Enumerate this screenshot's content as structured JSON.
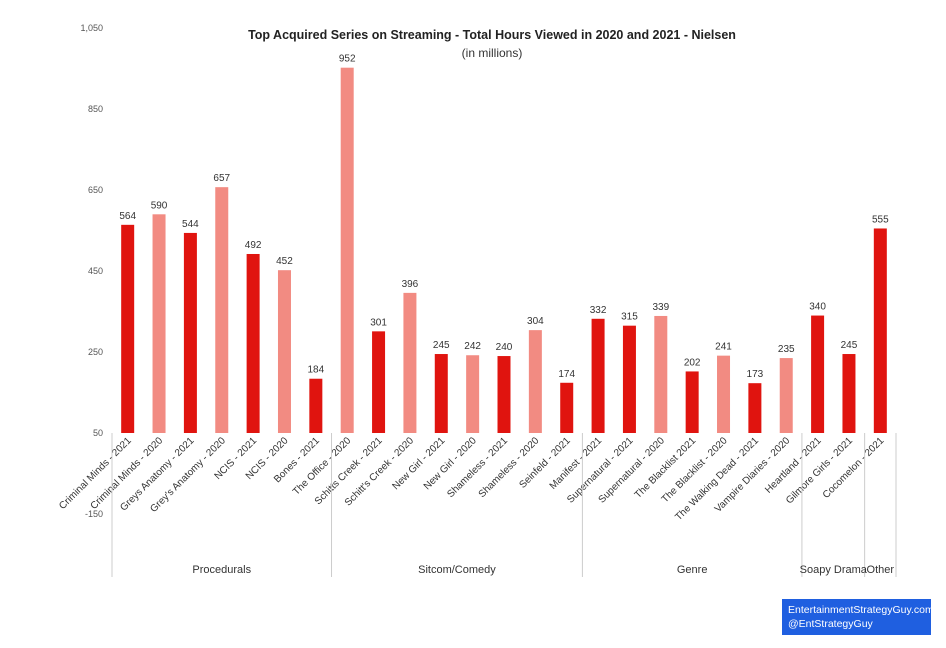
{
  "chart_data": {
    "type": "bar",
    "title": "Top Acquired Series on Streaming - Total Hours Viewed in 2020 and 2021 - Nielsen",
    "subtitle": "(in millions)",
    "ylim": [
      -150,
      1050
    ],
    "yticks": [
      "-150",
      "50",
      "250",
      "450",
      "650",
      "850",
      "1,050"
    ],
    "colors": {
      "2021": "#e0140f",
      "2020": "#f28b82"
    },
    "grid": false,
    "categories": [
      "Criminal Minds - 2021",
      "Criminal Minds - 2020",
      "Greys Anatomy - 2021",
      "Grey's Anatomy - 2020",
      "NCIS - 2021",
      "NCIS - 2020",
      "Bones - 2021",
      "The Office - 2020",
      "Schitts Creek - 2021",
      "Schitt's Creek - 2020",
      "New Girl - 2021",
      "New Girl - 2020",
      "Shameless - 2021",
      "Shameless - 2020",
      "Seinfeld - 2021",
      "Manifest - 2021",
      "Supernatural - 2021",
      "Supernatural - 2020",
      "The Blacklist 2021",
      "The Blacklist - 2020",
      "The Walking Dead - 2021",
      "Vampire Diaries - 2020",
      "Heartland - 2021",
      "Gilmore Girls - 2021",
      "Cocomelon - 2021"
    ],
    "values": [
      564,
      590,
      544,
      657,
      492,
      452,
      184,
      952,
      301,
      396,
      245,
      242,
      240,
      304,
      174,
      332,
      315,
      339,
      202,
      241,
      173,
      235,
      340,
      245,
      555
    ],
    "value_labels": [
      "564",
      "590",
      "544",
      "657",
      "492",
      "452",
      "184",
      "952",
      "301",
      "396",
      "245",
      "242",
      "240",
      "304",
      "174",
      "332",
      "315",
      "339",
      "202",
      "241",
      "173",
      "235",
      "340",
      "245",
      "555"
    ],
    "years": [
      "2021",
      "2020",
      "2021",
      "2020",
      "2021",
      "2020",
      "2021",
      "2020",
      "2021",
      "2020",
      "2021",
      "2020",
      "2021",
      "2020",
      "2021",
      "2021",
      "2021",
      "2020",
      "2021",
      "2020",
      "2021",
      "2020",
      "2021",
      "2021",
      "2021"
    ],
    "groups": [
      {
        "name": "Procedurals",
        "count": 7
      },
      {
        "name": "Sitcom/Comedy",
        "count": 8
      },
      {
        "name": "Genre",
        "count": 7
      },
      {
        "name": "Soapy Drama",
        "count": 2
      },
      {
        "name": "Other",
        "count": 1
      }
    ]
  },
  "credit": {
    "line1": "EntertainmentStrategyGuy.com",
    "line2": "@EntStrategyGuy"
  }
}
